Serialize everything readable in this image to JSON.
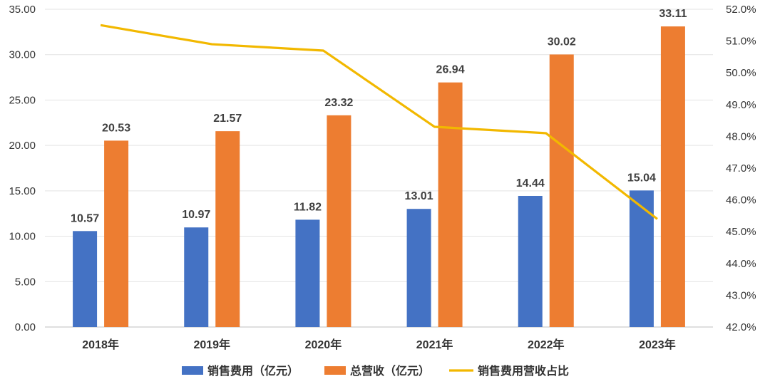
{
  "chart_data": {
    "type": "bar",
    "categories": [
      "2018年",
      "2019年",
      "2020年",
      "2021年",
      "2022年",
      "2023年"
    ],
    "series": [
      {
        "name": "销售费用（亿元）",
        "type": "bar",
        "axis": "left",
        "color": "#4472C4",
        "values": [
          10.57,
          10.97,
          11.82,
          13.01,
          14.44,
          15.04
        ],
        "labels": [
          "10.57",
          "10.97",
          "11.82",
          "13.01",
          "14.44",
          "15.04"
        ]
      },
      {
        "name": "总营收（亿元）",
        "type": "bar",
        "axis": "left",
        "color": "#ED7D31",
        "values": [
          20.53,
          21.57,
          23.32,
          26.94,
          30.02,
          33.11
        ],
        "labels": [
          "20.53",
          "21.57",
          "23.32",
          "26.94",
          "30.02",
          "33.11"
        ]
      },
      {
        "name": "销售费用营收占比",
        "type": "line",
        "axis": "right",
        "color": "#F2B800",
        "values": [
          51.5,
          50.9,
          50.7,
          48.3,
          48.1,
          45.4
        ]
      }
    ],
    "y_left": {
      "min": 0,
      "max": 35,
      "ticks": [
        "0.00",
        "5.00",
        "10.00",
        "15.00",
        "20.00",
        "25.00",
        "30.00",
        "35.00"
      ]
    },
    "y_right": {
      "min": 42,
      "max": 52,
      "ticks": [
        "42.0%",
        "43.0%",
        "44.0%",
        "45.0%",
        "46.0%",
        "47.0%",
        "48.0%",
        "49.0%",
        "50.0%",
        "51.0%",
        "52.0%"
      ]
    },
    "grid": true,
    "legend_position": "bottom"
  }
}
